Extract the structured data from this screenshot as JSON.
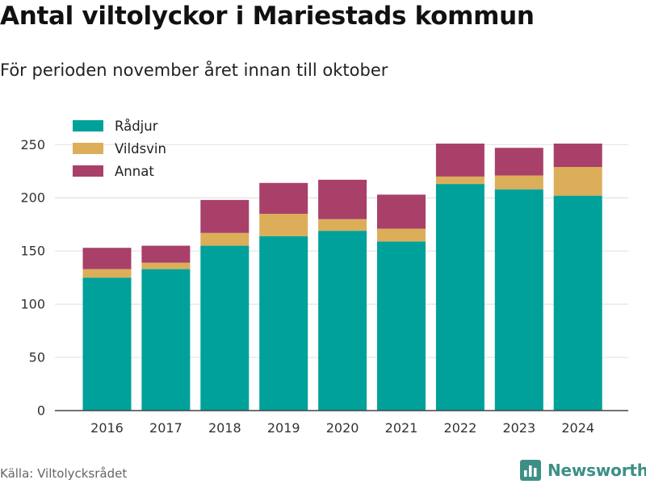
{
  "header": {
    "title": "Antal viltolyckor i Mariestads kommun",
    "subtitle": "För perioden november året innan till oktober"
  },
  "footer": {
    "source": "Källa: Viltolycksrådet",
    "brand": "Newsworthy"
  },
  "colors": {
    "Rådjur": "#00a19a",
    "Vildsvin": "#dcae5a",
    "Annat": "#a8406a",
    "brand": "#3d8f86"
  },
  "chart_data": {
    "type": "bar",
    "stacked": true,
    "title": "",
    "xlabel": "",
    "ylabel": "",
    "categories": [
      "2016",
      "2017",
      "2018",
      "2019",
      "2020",
      "2021",
      "2022",
      "2023",
      "2024"
    ],
    "series": [
      {
        "name": "Rådjur",
        "values": [
          125,
          133,
          155,
          164,
          169,
          159,
          213,
          208,
          202
        ]
      },
      {
        "name": "Vildsvin",
        "values": [
          8,
          6,
          12,
          21,
          11,
          12,
          7,
          13,
          27
        ]
      },
      {
        "name": "Annat",
        "values": [
          20,
          16,
          31,
          29,
          37,
          32,
          31,
          26,
          22
        ]
      }
    ],
    "yticks": [
      0,
      50,
      100,
      150,
      200,
      250
    ],
    "ylim": [
      0,
      270
    ],
    "grid": true,
    "legend": "top-left"
  }
}
